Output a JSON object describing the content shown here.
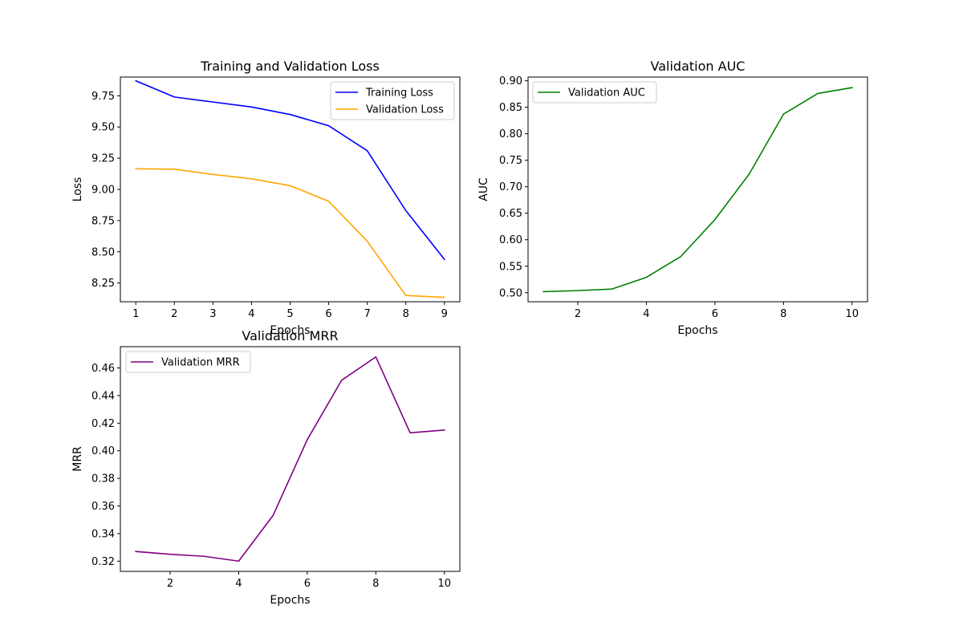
{
  "chart_data": [
    {
      "type": "line",
      "title": "Training and Validation Loss",
      "xlabel": "Epochs",
      "ylabel": "Loss",
      "x": [
        1,
        2,
        3,
        4,
        5,
        6,
        7,
        8,
        9
      ],
      "xticks": [
        1,
        2,
        3,
        4,
        5,
        6,
        7,
        8,
        9
      ],
      "xlim": [
        0.6,
        9.4
      ],
      "yticks": [
        8.25,
        8.5,
        8.75,
        9.0,
        9.25,
        9.5,
        9.75
      ],
      "ytick_labels": [
        "8.25",
        "8.50",
        "8.75",
        "9.00",
        "9.25",
        "9.50",
        "9.75"
      ],
      "ylim": [
        8.1,
        9.9
      ],
      "grid": false,
      "legend_position": "top-right",
      "series": [
        {
          "name": "Training Loss",
          "color": "#0000ff",
          "values": [
            9.87,
            9.74,
            9.7,
            9.66,
            9.6,
            9.51,
            9.31,
            8.83,
            8.44
          ]
        },
        {
          "name": "Validation Loss",
          "color": "#ffa500",
          "values": [
            9.165,
            9.162,
            9.12,
            9.085,
            9.03,
            8.905,
            8.585,
            8.15,
            8.135
          ]
        }
      ]
    },
    {
      "type": "line",
      "title": "Validation AUC",
      "xlabel": "Epochs",
      "ylabel": "AUC",
      "x": [
        1,
        2,
        3,
        4,
        5,
        6,
        7,
        8,
        9,
        10
      ],
      "xticks": [
        2,
        4,
        6,
        8,
        10
      ],
      "xlim": [
        0.55,
        10.45
      ],
      "yticks": [
        0.5,
        0.55,
        0.6,
        0.65,
        0.7,
        0.75,
        0.8,
        0.85,
        0.9
      ],
      "ytick_labels": [
        "0.50",
        "0.55",
        "0.60",
        "0.65",
        "0.70",
        "0.75",
        "0.80",
        "0.85",
        "0.90"
      ],
      "ylim": [
        0.483,
        0.907
      ],
      "grid": false,
      "legend_position": "top-left",
      "series": [
        {
          "name": "Validation AUC",
          "color": "#008000",
          "values": [
            0.502,
            0.504,
            0.507,
            0.529,
            0.568,
            0.638,
            0.724,
            0.837,
            0.876,
            0.887
          ]
        }
      ]
    },
    {
      "type": "line",
      "title": "Validation MRR",
      "xlabel": "Epochs",
      "ylabel": "MRR",
      "x": [
        1,
        2,
        3,
        4,
        5,
        6,
        7,
        8,
        9,
        10
      ],
      "xticks": [
        2,
        4,
        6,
        8,
        10
      ],
      "xlim": [
        0.55,
        10.45
      ],
      "yticks": [
        0.32,
        0.34,
        0.36,
        0.38,
        0.4,
        0.42,
        0.44,
        0.46
      ],
      "ytick_labels": [
        "0.32",
        "0.34",
        "0.36",
        "0.38",
        "0.40",
        "0.42",
        "0.44",
        "0.46"
      ],
      "ylim": [
        0.3126,
        0.4754
      ],
      "grid": false,
      "legend_position": "top-left",
      "series": [
        {
          "name": "Validation MRR",
          "color": "#800080",
          "values": [
            0.327,
            0.325,
            0.3235,
            0.32,
            0.353,
            0.408,
            0.451,
            0.468,
            0.413,
            0.415
          ]
        }
      ]
    }
  ]
}
